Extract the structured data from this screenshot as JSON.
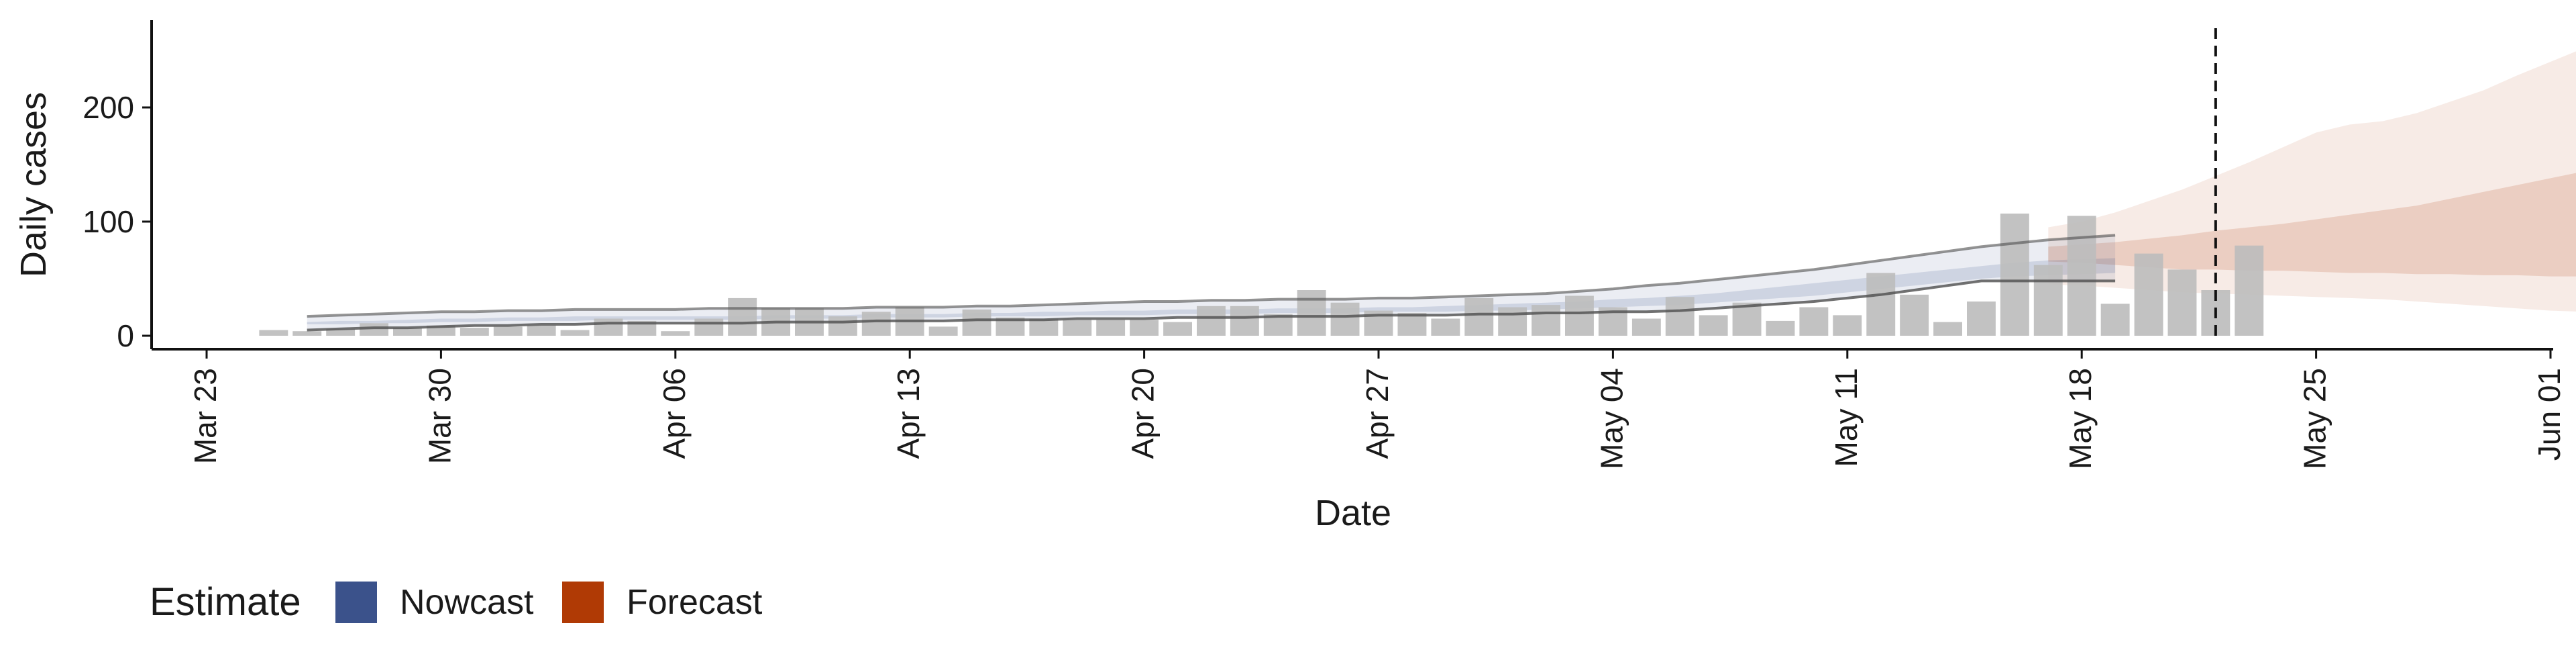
{
  "chart_data": {
    "type": "bar",
    "xlabel": "Date",
    "ylabel": "Daily cases",
    "x_ticks": [
      "Mar 23",
      "Mar 30",
      "Apr 06",
      "Apr 13",
      "Apr 20",
      "Apr 27",
      "May 04",
      "May 11",
      "May 18",
      "May 25",
      "Jun 01"
    ],
    "y_ticks": [
      "0",
      "100",
      "200"
    ],
    "ylim": [
      -12,
      275
    ],
    "xlim": [
      "2020-03-23",
      "2020-06-01"
    ],
    "vline_date": "2020-05-22",
    "bars": {
      "start_date": "2020-03-25",
      "values": [
        5,
        4,
        6,
        11,
        7,
        9,
        7,
        8,
        9,
        5,
        15,
        13,
        4,
        15,
        33,
        24,
        24,
        17,
        21,
        25,
        8,
        23,
        16,
        15,
        14,
        14,
        14,
        12,
        26,
        26,
        19,
        40,
        29,
        22,
        20,
        15,
        33,
        25,
        27,
        35,
        25,
        15,
        34,
        18,
        29,
        13,
        25,
        18,
        55,
        36,
        12,
        30,
        107,
        62,
        105,
        28,
        72,
        58,
        40,
        79
      ]
    },
    "nowcast": {
      "start_date": "2020-03-26",
      "series": [
        {
          "name": "outer_lower",
          "values": [
            5,
            6,
            7,
            7,
            8,
            9,
            9,
            10,
            10,
            11,
            11,
            11,
            11,
            11,
            12,
            12,
            12,
            13,
            13,
            13,
            14,
            14,
            14,
            15,
            15,
            15,
            16,
            16,
            16,
            17,
            17,
            17,
            18,
            18,
            18,
            19,
            19,
            20,
            20,
            21,
            21,
            22,
            24,
            26,
            28,
            30,
            33,
            36,
            40,
            44,
            48,
            48,
            48,
            48,
            48
          ]
        },
        {
          "name": "outer_upper",
          "values": [
            17,
            18,
            19,
            20,
            21,
            21,
            22,
            22,
            23,
            23,
            23,
            23,
            24,
            24,
            24,
            24,
            24,
            25,
            25,
            25,
            26,
            26,
            27,
            28,
            29,
            30,
            30,
            31,
            31,
            32,
            32,
            32,
            33,
            33,
            34,
            35,
            36,
            37,
            39,
            41,
            44,
            46,
            49,
            52,
            55,
            58,
            62,
            66,
            70,
            74,
            78,
            81,
            84,
            86,
            88
          ]
        },
        {
          "name": "inner_lower",
          "values": [
            10,
            10,
            11,
            11,
            12,
            12,
            13,
            13,
            13,
            14,
            14,
            14,
            14,
            14,
            15,
            15,
            15,
            16,
            16,
            16,
            17,
            17,
            17,
            18,
            18,
            18,
            19,
            19,
            19,
            20,
            20,
            20,
            21,
            21,
            21,
            22,
            22,
            23,
            24,
            25,
            26,
            27,
            29,
            31,
            33,
            35,
            38,
            41,
            44,
            47,
            50,
            52,
            53,
            54,
            55
          ]
        },
        {
          "name": "inner_upper",
          "values": [
            12,
            13,
            13,
            14,
            15,
            15,
            16,
            16,
            17,
            17,
            17,
            17,
            17,
            17,
            18,
            18,
            18,
            19,
            19,
            19,
            20,
            20,
            21,
            21,
            22,
            22,
            23,
            23,
            23,
            24,
            24,
            24,
            25,
            25,
            26,
            27,
            28,
            29,
            30,
            32,
            33,
            35,
            37,
            40,
            43,
            46,
            49,
            52,
            55,
            58,
            61,
            64,
            66,
            67,
            68
          ]
        }
      ]
    },
    "forecast": {
      "start_date": "2020-05-17",
      "series": [
        {
          "name": "outer_lower",
          "values": [
            45,
            44,
            42,
            40,
            38,
            37,
            36,
            35,
            34,
            33,
            32,
            30,
            28,
            26,
            24,
            22,
            21,
            20
          ]
        },
        {
          "name": "outer_upper",
          "values": [
            95,
            100,
            108,
            118,
            128,
            140,
            152,
            165,
            178,
            185,
            188,
            195,
            205,
            215,
            228,
            240,
            252,
            265
          ]
        },
        {
          "name": "inner_lower",
          "values": [
            65,
            64,
            62,
            60,
            58,
            58,
            57,
            57,
            56,
            55,
            55,
            54,
            54,
            53,
            53,
            52,
            52,
            51
          ]
        },
        {
          "name": "inner_upper",
          "values": [
            78,
            80,
            82,
            85,
            88,
            92,
            95,
            98,
            102,
            106,
            110,
            114,
            120,
            126,
            132,
            138,
            144,
            150
          ]
        }
      ]
    },
    "colors": {
      "bar": "#bdbdbd",
      "nowcast": "#3b528b",
      "forecast": "#b03a05",
      "line": "#1a1a1a"
    },
    "legend": {
      "title": "Estimate",
      "items": [
        {
          "label": "Nowcast",
          "color": "#3b528b"
        },
        {
          "label": "Forecast",
          "color": "#b03a05"
        }
      ],
      "position": "bottom-left"
    }
  }
}
